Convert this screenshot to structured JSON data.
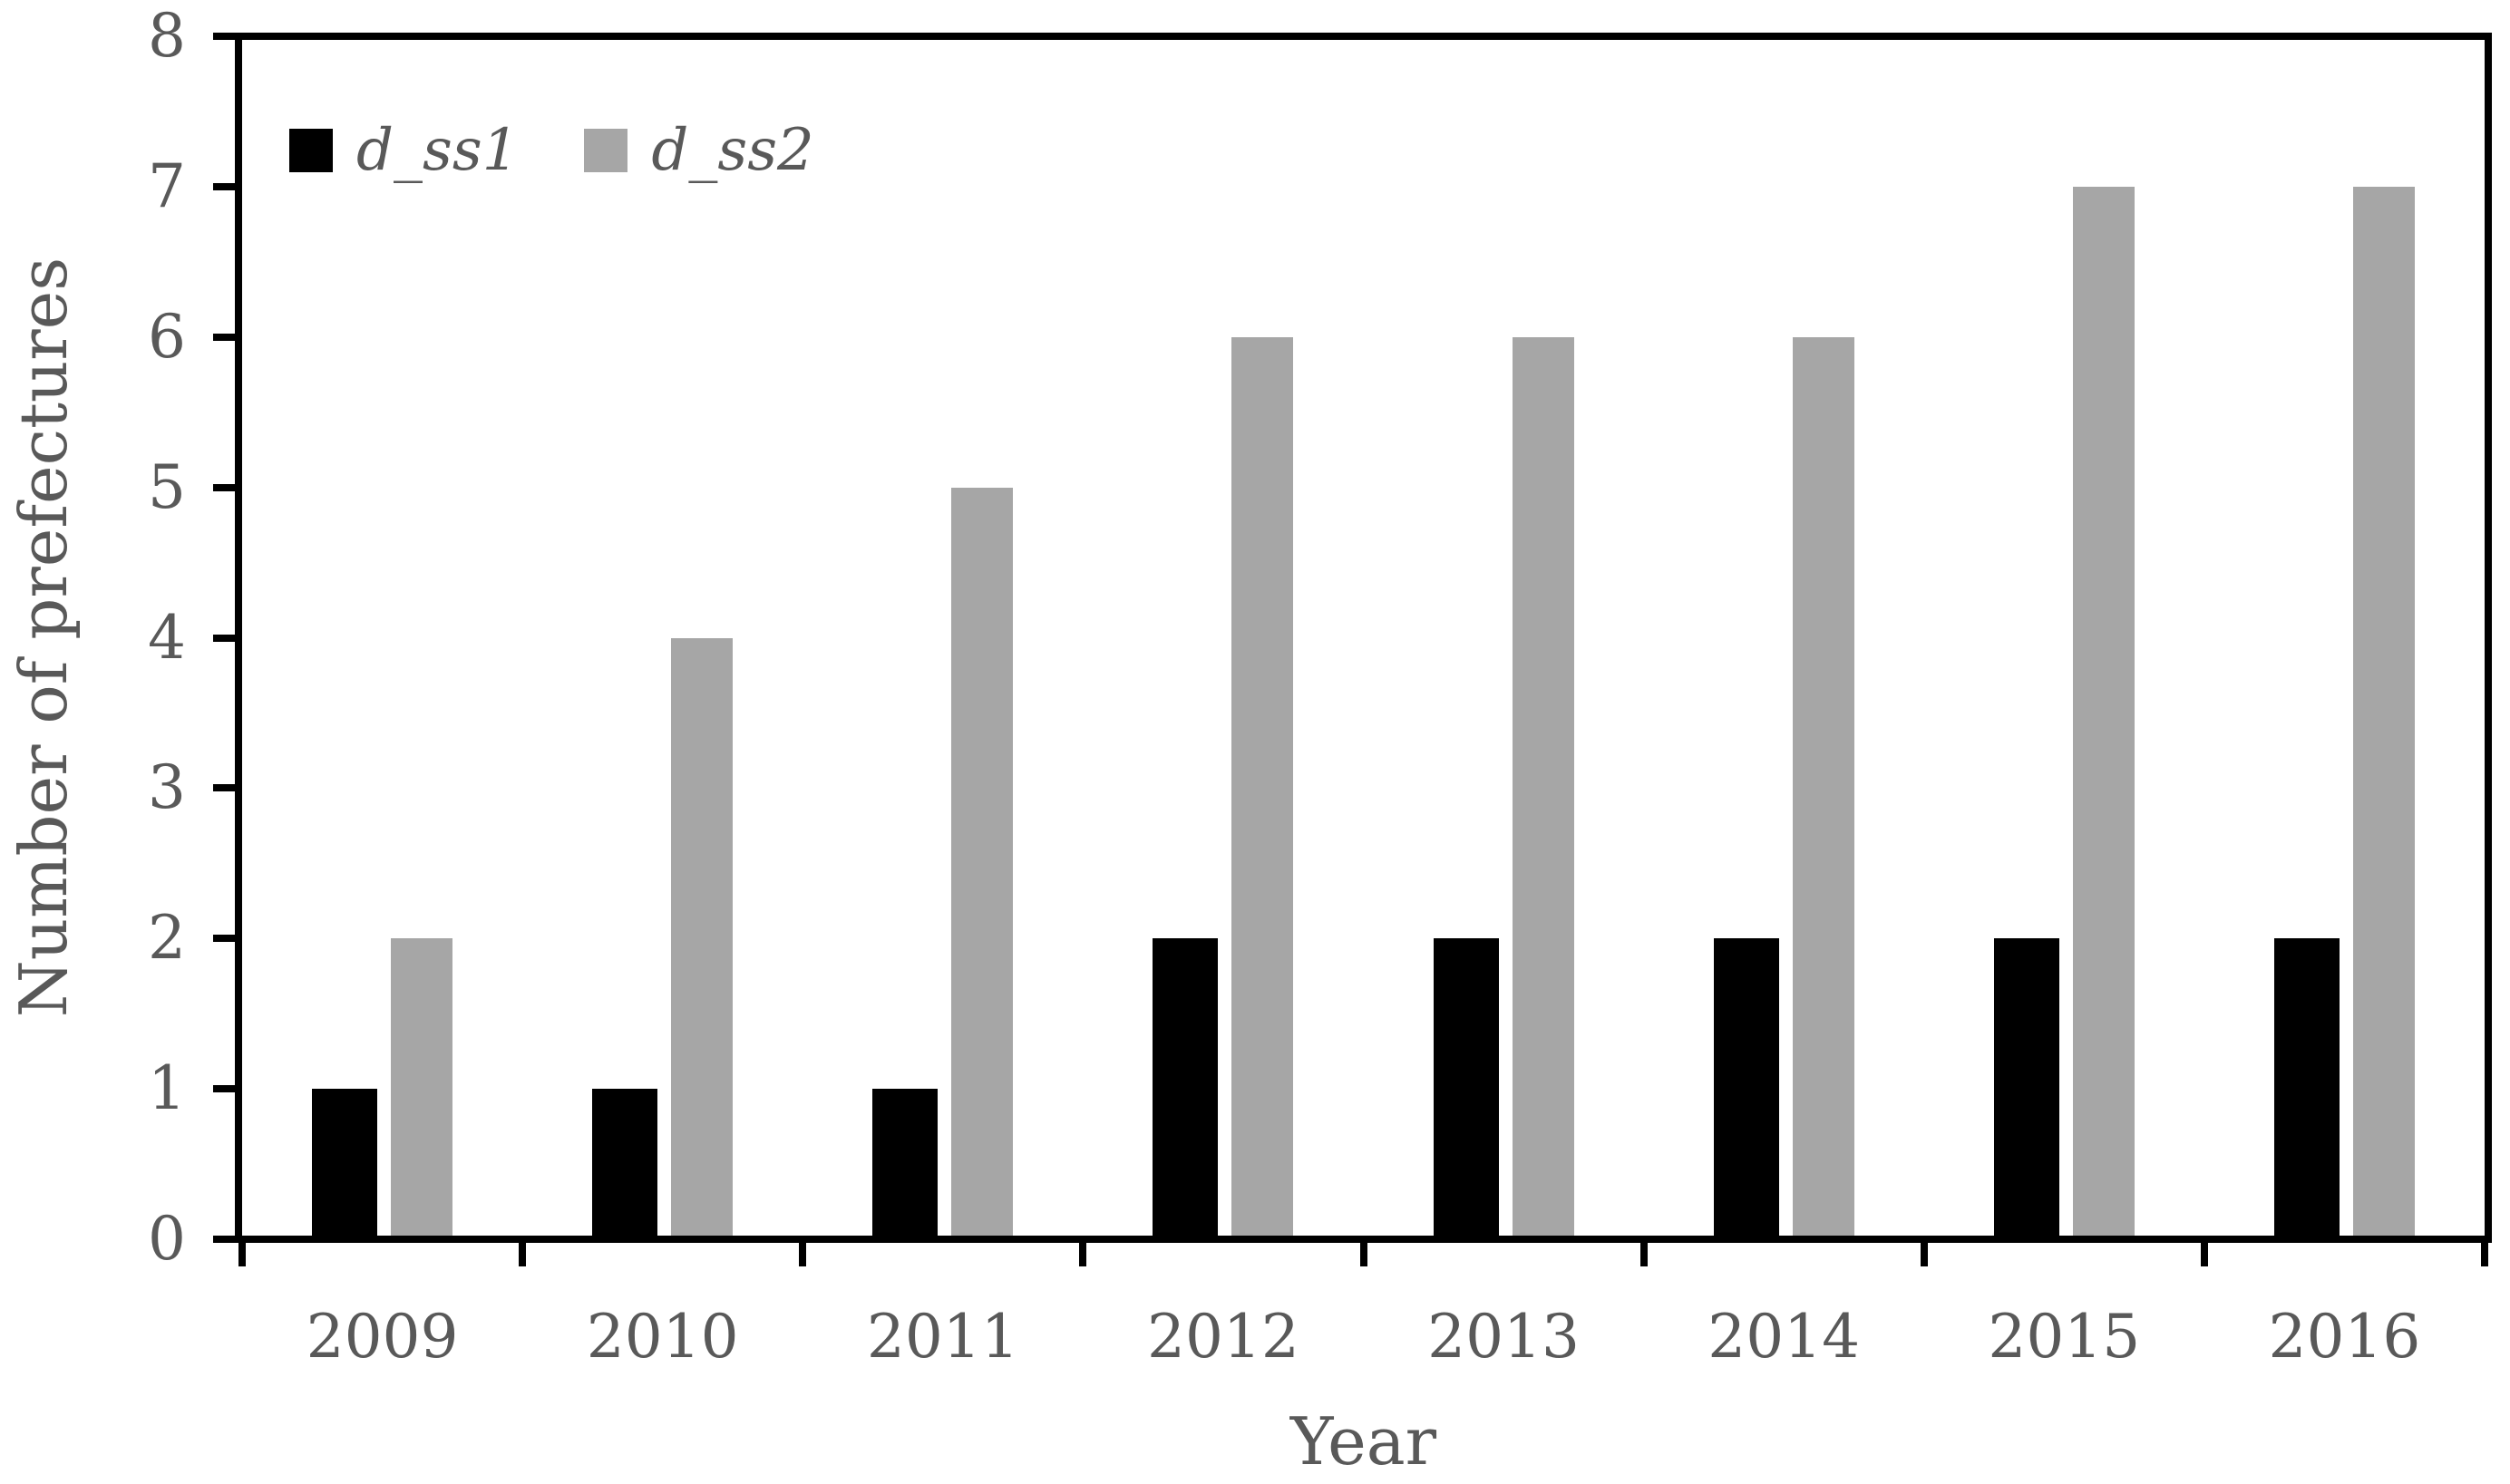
{
  "chart_data": {
    "type": "bar",
    "title": "",
    "categories": [
      "2009",
      "2010",
      "2011",
      "2012",
      "2013",
      "2014",
      "2015",
      "2016"
    ],
    "series": [
      {
        "name": "d_ss1",
        "color": "#000000",
        "values": [
          1,
          1,
          1,
          2,
          2,
          2,
          2,
          2
        ]
      },
      {
        "name": "d_ss2",
        "color": "#a6a6a6",
        "values": [
          2,
          4,
          5,
          6,
          6,
          6,
          7,
          7
        ]
      }
    ],
    "xlabel": "Year",
    "ylabel": "Number of prefectures",
    "ylim": [
      0,
      8
    ],
    "y_ticks": [
      "0",
      "1",
      "2",
      "3",
      "4",
      "5",
      "6",
      "7",
      "8"
    ],
    "grid": false,
    "legend_position": "top-left-inside",
    "frame": "full-box",
    "colors": {
      "axis": "#000000",
      "tick_text": "#595959",
      "background": "#ffffff"
    }
  }
}
